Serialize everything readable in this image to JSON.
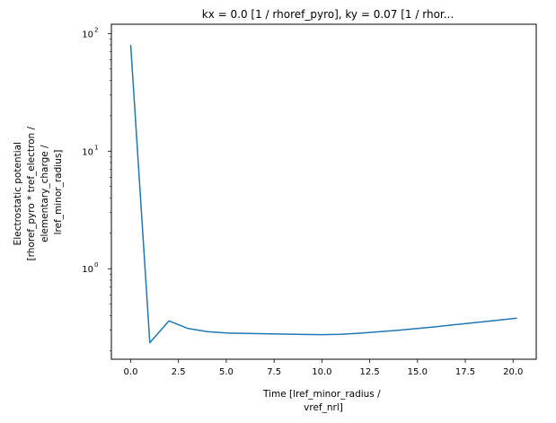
{
  "chart_data": {
    "type": "line",
    "title": "kx = 0.0 [1 / rhoref_pyro], ky = 0.07 [1 / rhor...",
    "xlabel": [
      "Time [lref_minor_radius /",
      "vref_nrl]"
    ],
    "ylabel": [
      "Electrostatic potential",
      "[rhoref_pyro * tref_electron /",
      "elementary_charge /",
      "lref_minor_radius]"
    ],
    "xlim": [
      -1.01,
      21.21
    ],
    "ylim": [
      0.17,
      120
    ],
    "yscale": "log",
    "grid": false,
    "x_ticks": [
      0,
      2.5,
      5,
      7.5,
      10,
      12.5,
      15,
      17.5,
      20
    ],
    "x_tick_labels": [
      "0.0",
      "2.5",
      "5.0",
      "7.5",
      "10.0",
      "12.5",
      "15.0",
      "17.5",
      "20.0"
    ],
    "y_ticks": [
      1,
      10,
      100
    ],
    "y_tick_labels": [
      {
        "base": "10",
        "exp": "0"
      },
      {
        "base": "10",
        "exp": "1"
      },
      {
        "base": "10",
        "exp": "2"
      }
    ],
    "series": [
      {
        "color": "#1f77b4",
        "x": [
          0,
          1,
          2,
          3,
          4,
          5,
          6,
          7,
          8,
          9,
          10,
          11,
          12,
          13,
          14,
          15,
          16,
          17,
          18,
          19,
          20.2
        ],
        "y": [
          80,
          0.235,
          0.36,
          0.31,
          0.292,
          0.284,
          0.282,
          0.28,
          0.278,
          0.276,
          0.275,
          0.277,
          0.283,
          0.291,
          0.3,
          0.31,
          0.322,
          0.335,
          0.348,
          0.362,
          0.38
        ]
      }
    ]
  }
}
